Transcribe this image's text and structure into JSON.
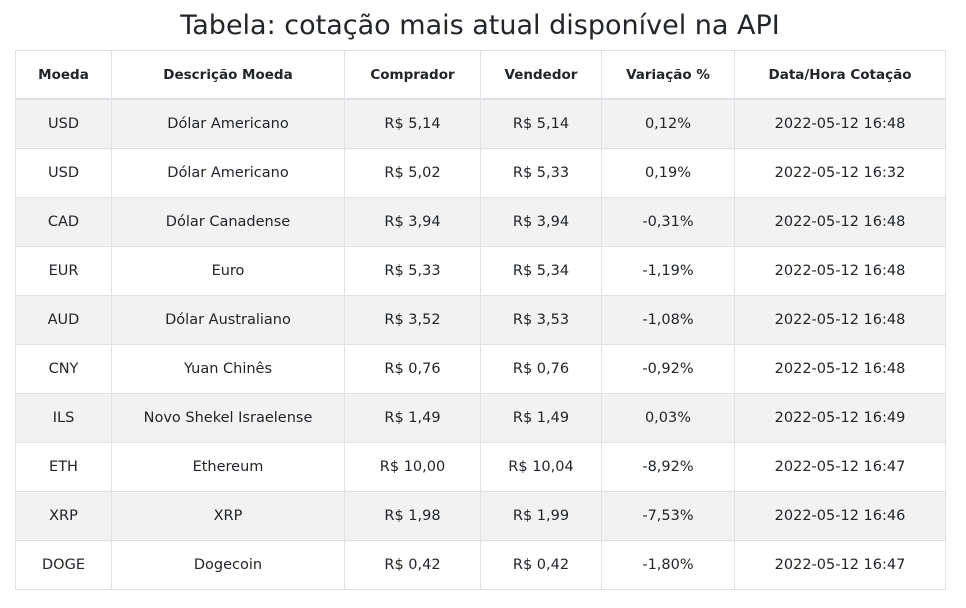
{
  "page": {
    "title": "Tabela: cotação mais atual disponível na API"
  },
  "table": {
    "headers": [
      "Moeda",
      "Descrição Moeda",
      "Comprador",
      "Vendedor",
      "Variação %",
      "Data/Hora Cotação"
    ],
    "rows": [
      [
        "USD",
        "Dólar Americano",
        "R$ 5,14",
        "R$ 5,14",
        "0,12%",
        "2022-05-12 16:48"
      ],
      [
        "USD",
        "Dólar Americano",
        "R$ 5,02",
        "R$ 5,33",
        "0,19%",
        "2022-05-12 16:32"
      ],
      [
        "CAD",
        "Dólar Canadense",
        "R$ 3,94",
        "R$ 3,94",
        "-0,31%",
        "2022-05-12 16:48"
      ],
      [
        "EUR",
        "Euro",
        "R$ 5,33",
        "R$ 5,34",
        "-1,19%",
        "2022-05-12 16:48"
      ],
      [
        "AUD",
        "Dólar Australiano",
        "R$ 3,52",
        "R$ 3,53",
        "-1,08%",
        "2022-05-12 16:48"
      ],
      [
        "CNY",
        "Yuan Chinês",
        "R$ 0,76",
        "R$ 0,76",
        "-0,92%",
        "2022-05-12 16:48"
      ],
      [
        "ILS",
        "Novo Shekel Israelense",
        "R$ 1,49",
        "R$ 1,49",
        "0,03%",
        "2022-05-12 16:49"
      ],
      [
        "ETH",
        "Ethereum",
        "R$ 10,00",
        "R$ 10,04",
        "-8,92%",
        "2022-05-12 16:47"
      ],
      [
        "XRP",
        "XRP",
        "R$ 1,98",
        "R$ 1,99",
        "-7,53%",
        "2022-05-12 16:46"
      ],
      [
        "DOGE",
        "Dogecoin",
        "R$ 0,42",
        "R$ 0,42",
        "-1,80%",
        "2022-05-12 16:47"
      ]
    ]
  }
}
